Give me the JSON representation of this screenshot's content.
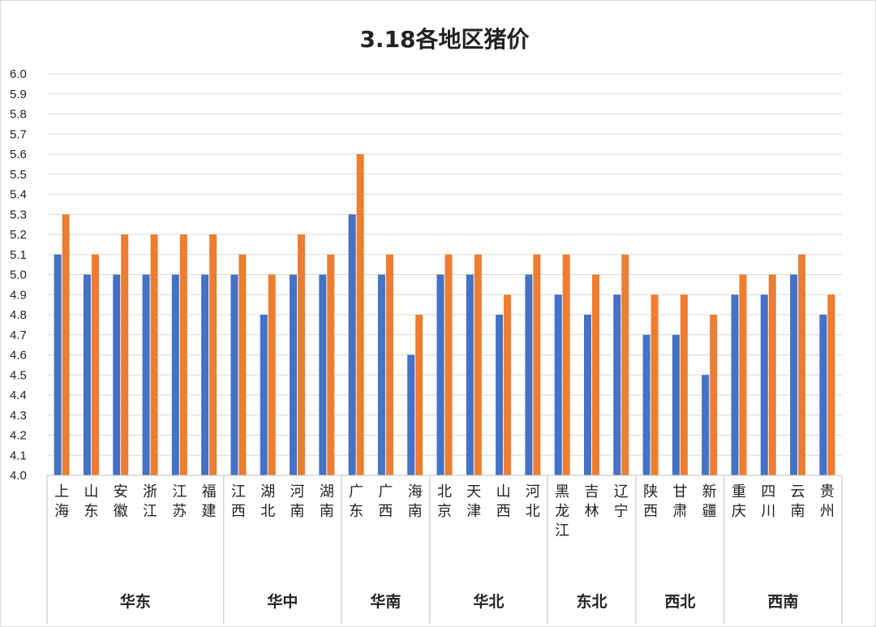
{
  "chart_data": {
    "type": "bar",
    "title": "3.18各地区猪价",
    "ylim": [
      4.0,
      6.0
    ],
    "yticks": [
      "4.0",
      "4.1",
      "4.2",
      "4.3",
      "4.4",
      "4.5",
      "4.6",
      "4.7",
      "4.8",
      "4.9",
      "5.0",
      "5.1",
      "5.2",
      "5.3",
      "5.4",
      "5.5",
      "5.6",
      "5.7",
      "5.8",
      "5.9",
      "6.0"
    ],
    "grid": true,
    "categories": [
      "上海",
      "山东",
      "安徽",
      "浙江",
      "江苏",
      "福建",
      "江西",
      "湖北",
      "河南",
      "湖南",
      "广东",
      "广西",
      "海南",
      "北京",
      "天津",
      "山西",
      "河北",
      "黑龙江",
      "吉林",
      "辽宁",
      "陕西",
      "甘肃",
      "新疆",
      "重庆",
      "四川",
      "云南",
      "贵州"
    ],
    "groups": [
      {
        "name": "华东",
        "count": 6
      },
      {
        "name": "华中",
        "count": 4
      },
      {
        "name": "华南",
        "count": 3
      },
      {
        "name": "华北",
        "count": 4
      },
      {
        "name": "东北",
        "count": 3
      },
      {
        "name": "西北",
        "count": 3
      },
      {
        "name": "西南",
        "count": 4
      }
    ],
    "series": [
      {
        "color": "#4472C4",
        "values": [
          5.1,
          5.0,
          5.0,
          5.0,
          5.0,
          5.0,
          5.0,
          4.8,
          5.0,
          5.0,
          5.3,
          5.0,
          4.6,
          5.0,
          5.0,
          4.8,
          5.0,
          4.9,
          4.8,
          4.9,
          4.7,
          4.7,
          4.5,
          4.9,
          4.9,
          5.0,
          4.8
        ]
      },
      {
        "color": "#ED7D31",
        "values": [
          5.3,
          5.1,
          5.2,
          5.2,
          5.2,
          5.2,
          5.1,
          5.0,
          5.2,
          5.1,
          5.6,
          5.1,
          4.8,
          5.1,
          5.1,
          4.9,
          5.1,
          5.1,
          5.0,
          5.1,
          4.9,
          4.9,
          4.8,
          5.0,
          5.0,
          5.1,
          4.9
        ]
      }
    ]
  }
}
